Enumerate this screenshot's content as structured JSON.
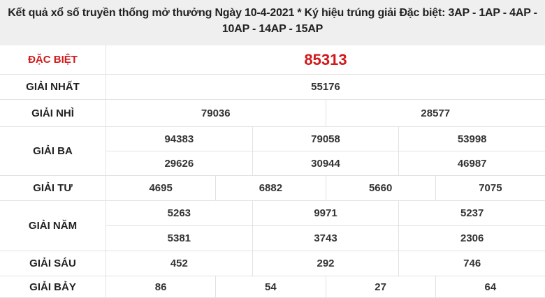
{
  "title": "Kết quả xổ số truyền thống mở thưởng Ngày 10-4-2021 * Ký hiệu trúng giải Đặc biệt: 3AP - 1AP - 4AP - 10AP - 14AP - 15AP",
  "accent_color": "#d0191b",
  "prizes": [
    {
      "label": "ĐẶC BIỆT",
      "rows": [
        [
          "85313"
        ]
      ]
    },
    {
      "label": "GIẢI NHẤT",
      "rows": [
        [
          "55176"
        ]
      ]
    },
    {
      "label": "GIẢI NHÌ",
      "rows": [
        [
          "79036",
          "28577"
        ]
      ]
    },
    {
      "label": "GIẢI BA",
      "rows": [
        [
          "94383",
          "79058",
          "53998"
        ],
        [
          "29626",
          "30944",
          "46987"
        ]
      ]
    },
    {
      "label": "GIẢI TƯ",
      "rows": [
        [
          "4695",
          "6882",
          "5660",
          "7075"
        ]
      ]
    },
    {
      "label": "GIẢI NĂM",
      "rows": [
        [
          "5263",
          "9971",
          "5237"
        ],
        [
          "5381",
          "3743",
          "2306"
        ]
      ]
    },
    {
      "label": "GIẢI SÁU",
      "rows": [
        [
          "452",
          "292",
          "746"
        ]
      ]
    },
    {
      "label": "GIẢI BẢY",
      "rows": [
        [
          "86",
          "54",
          "27",
          "64"
        ]
      ]
    }
  ]
}
